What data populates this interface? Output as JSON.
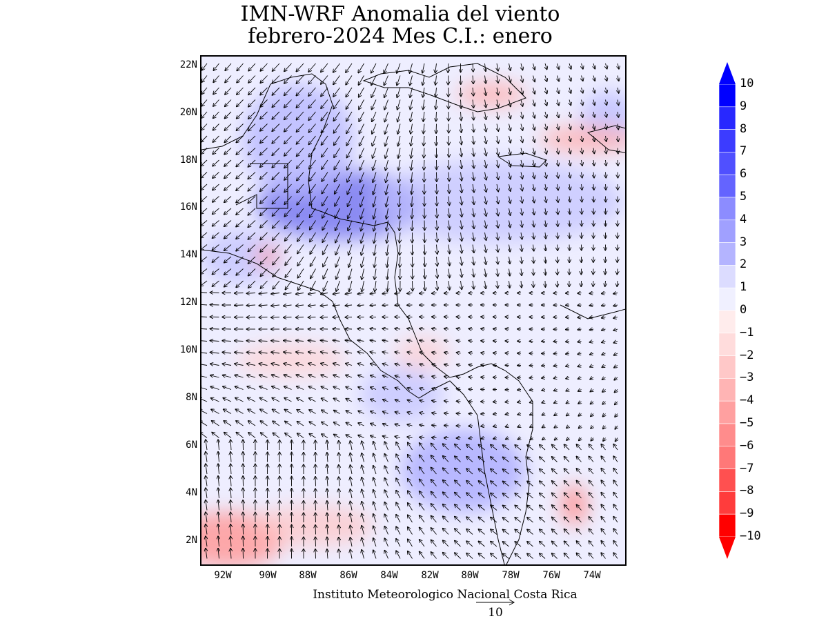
{
  "title": {
    "line1": "IMN-WRF Anomalia del viento",
    "line2": "febrero-2024 Mes C.I.: enero"
  },
  "map": {
    "lat_labels": [
      "22N",
      "20N",
      "18N",
      "16N",
      "14N",
      "12N",
      "10N",
      "8N",
      "6N",
      "4N",
      "2N"
    ],
    "lon_labels": [
      "92W",
      "90W",
      "88W",
      "86W",
      "84W",
      "82W",
      "80W",
      "78W",
      "76W",
      "74W"
    ]
  },
  "colorbar": {
    "labels": [
      "10",
      "9",
      "8",
      "7",
      "6",
      "5",
      "4",
      "3",
      "2",
      "1",
      "0",
      "−1",
      "−2",
      "−3",
      "−4",
      "−5",
      "−6",
      "−7",
      "−8",
      "−9",
      "−10"
    ],
    "colors": [
      "#0000ff",
      "#2828ff",
      "#3c3cff",
      "#5050ff",
      "#6464ff",
      "#8c8cff",
      "#a0a0ff",
      "#b4b4ff",
      "#dcdcff",
      "#f0f0ff",
      "#ffecec",
      "#ffdcdc",
      "#ffc8c8",
      "#ffb4b4",
      "#ffa0a0",
      "#ff8c8c",
      "#ff7878",
      "#ff5050",
      "#ff3c3c",
      "#ff0000"
    ],
    "max_color": "#0000ff",
    "min_color": "#ff0000"
  },
  "credit": "Instituto Meteorologico Nacional Costa Rica",
  "reference_vector": {
    "value": "10"
  }
}
